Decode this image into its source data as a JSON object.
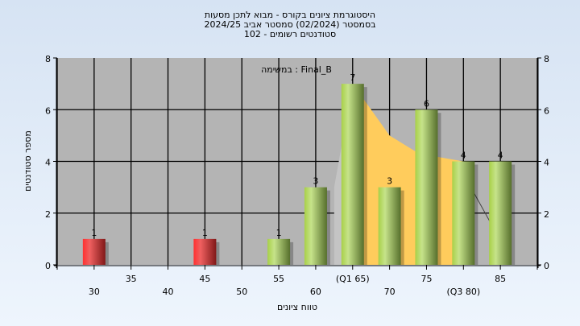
{
  "chart_data": {
    "type": "bar",
    "title_lines": [
      "היסטוגרמת ציונים בקורס - מבוא לתכן מסעות",
      "בסמסטר  (02/2024)  סמסטר אביב 2024/25",
      "סטודנטים רשומים - 102"
    ],
    "annotation": "במשימה : Final_B",
    "xlabel": "טווח ציונים",
    "ylabel": "מספר סטודנטים",
    "xlim": [
      25,
      90
    ],
    "ylim": [
      0,
      8
    ],
    "yticks": [
      0,
      2,
      4,
      6,
      8
    ],
    "xticks_upper": [
      {
        "x": 35,
        "label": "35"
      },
      {
        "x": 45,
        "label": "45"
      },
      {
        "x": 55,
        "label": "55"
      },
      {
        "x": 65,
        "label": "(Q1 65)"
      },
      {
        "x": 75,
        "label": "75"
      },
      {
        "x": 85,
        "label": "85"
      }
    ],
    "xticks_lower": [
      {
        "x": 30,
        "label": "30"
      },
      {
        "x": 40,
        "label": "40"
      },
      {
        "x": 50,
        "label": "50"
      },
      {
        "x": 60,
        "label": "60"
      },
      {
        "x": 70,
        "label": "70"
      },
      {
        "x": 80,
        "label": "(Q3 80)"
      }
    ],
    "bars": [
      {
        "x": 30,
        "value": 1,
        "color": "red"
      },
      {
        "x": 45,
        "value": 1,
        "color": "red"
      },
      {
        "x": 55,
        "value": 1,
        "color": "green"
      },
      {
        "x": 60,
        "value": 3,
        "color": "green"
      },
      {
        "x": 65,
        "value": 7,
        "color": "green"
      },
      {
        "x": 70,
        "value": 3,
        "color": "green"
      },
      {
        "x": 75,
        "value": 6,
        "color": "green"
      },
      {
        "x": 80,
        "value": 4,
        "color": "green"
      },
      {
        "x": 85,
        "value": 4,
        "color": "green"
      }
    ],
    "interquartile_area": [
      [
        65,
        0
      ],
      [
        65,
        7
      ],
      [
        70,
        5
      ],
      [
        74,
        4.3
      ],
      [
        80,
        4
      ],
      [
        80,
        0
      ]
    ],
    "outer_area": [
      [
        62.5,
        3
      ],
      [
        65,
        7
      ],
      [
        65,
        0
      ],
      [
        62.5,
        0
      ]
    ],
    "outer_line": [
      [
        81,
        3
      ],
      [
        84.5,
        1.2
      ]
    ],
    "grid": true,
    "colors": {
      "plot_bg": "#b4b4b4",
      "area": "#ffcc5c",
      "red": "#e02828",
      "green": "#98c048"
    }
  }
}
